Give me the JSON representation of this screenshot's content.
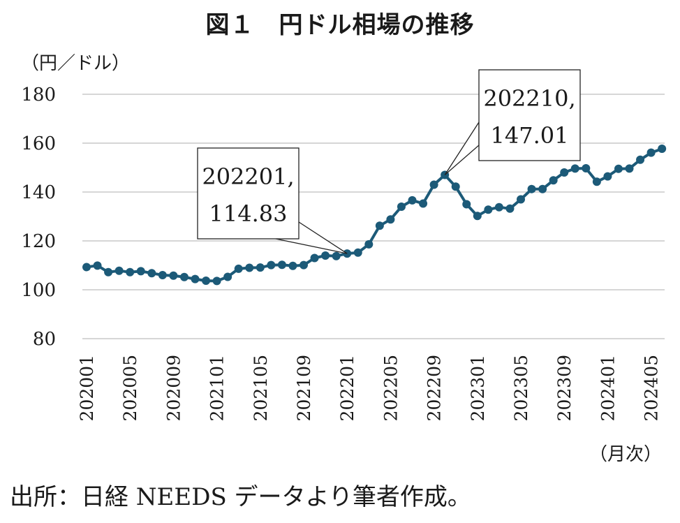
{
  "title": "図１　円ドル相場の推移",
  "source": "出所：日経 NEEDS データより筆者作成。",
  "chart_data": {
    "type": "line",
    "title": "図１　円ドル相場の推移",
    "ylabel": "（円／ドル）",
    "xlabel": "（月次）",
    "ylim": [
      80,
      180
    ],
    "yticks": [
      80,
      100,
      120,
      140,
      160,
      180
    ],
    "grid": true,
    "line_color": "#1c5a78",
    "x": [
      "202001",
      "202002",
      "202003",
      "202004",
      "202005",
      "202006",
      "202007",
      "202008",
      "202009",
      "202010",
      "202011",
      "202012",
      "202101",
      "202102",
      "202103",
      "202104",
      "202105",
      "202106",
      "202107",
      "202108",
      "202109",
      "202110",
      "202111",
      "202112",
      "202201",
      "202202",
      "202203",
      "202204",
      "202205",
      "202206",
      "202207",
      "202208",
      "202209",
      "202210",
      "202211",
      "202212",
      "202301",
      "202302",
      "202303",
      "202304",
      "202305",
      "202306",
      "202307",
      "202308",
      "202309",
      "202310",
      "202311",
      "202312",
      "202401",
      "202402",
      "202403",
      "202404",
      "202405",
      "202406"
    ],
    "xtick_labels": [
      "202001",
      "202005",
      "202009",
      "202101",
      "202105",
      "202109",
      "202201",
      "202205",
      "202209",
      "202301",
      "202305",
      "202309",
      "202401",
      "202405"
    ],
    "values": [
      109.3,
      109.9,
      107.2,
      107.8,
      107.2,
      107.6,
      106.8,
      106.0,
      105.8,
      105.2,
      104.4,
      103.7,
      103.6,
      105.3,
      108.6,
      109.0,
      109.1,
      110.1,
      110.2,
      109.8,
      110.1,
      113.0,
      114.0,
      113.8,
      114.83,
      115.2,
      118.6,
      126.2,
      128.8,
      134.0,
      136.6,
      135.3,
      143.0,
      147.01,
      142.2,
      135.0,
      130.2,
      132.8,
      133.8,
      133.2,
      137.0,
      141.2,
      141.2,
      144.8,
      148.0,
      149.6,
      149.7,
      144.2,
      146.4,
      149.5,
      149.6,
      153.2,
      156.1,
      157.7
    ],
    "annotations": [
      {
        "index": 24,
        "line1": "202201,",
        "line2": "114.83"
      },
      {
        "index": 33,
        "line1": "202210,",
        "line2": "147.01"
      }
    ]
  }
}
